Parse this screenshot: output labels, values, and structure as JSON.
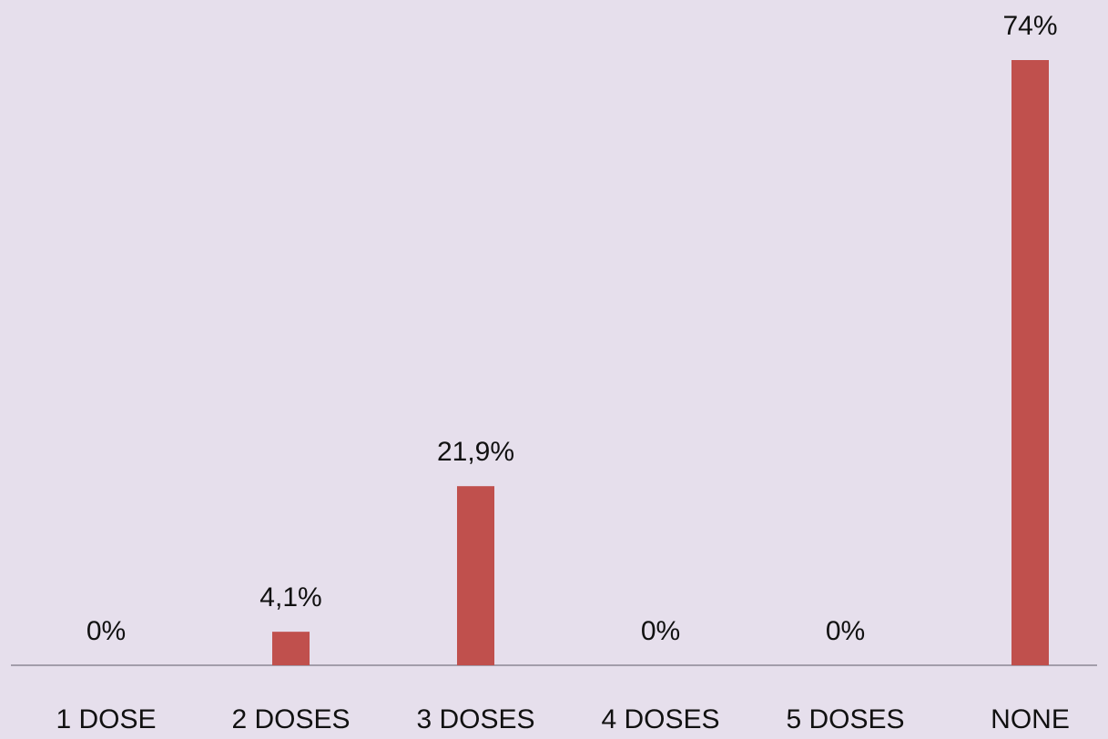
{
  "chart_data": {
    "type": "bar",
    "categories": [
      "1 DOSE",
      "2 DOSES",
      "3 DOSES",
      "4 DOSES",
      "5 DOSES",
      "NONE"
    ],
    "values": [
      0,
      4.1,
      21.9,
      0,
      0,
      74
    ],
    "value_labels": [
      "0%",
      "4,1%",
      "21,9%",
      "0%",
      "0%",
      "74%"
    ],
    "color": "#c0504d"
  }
}
